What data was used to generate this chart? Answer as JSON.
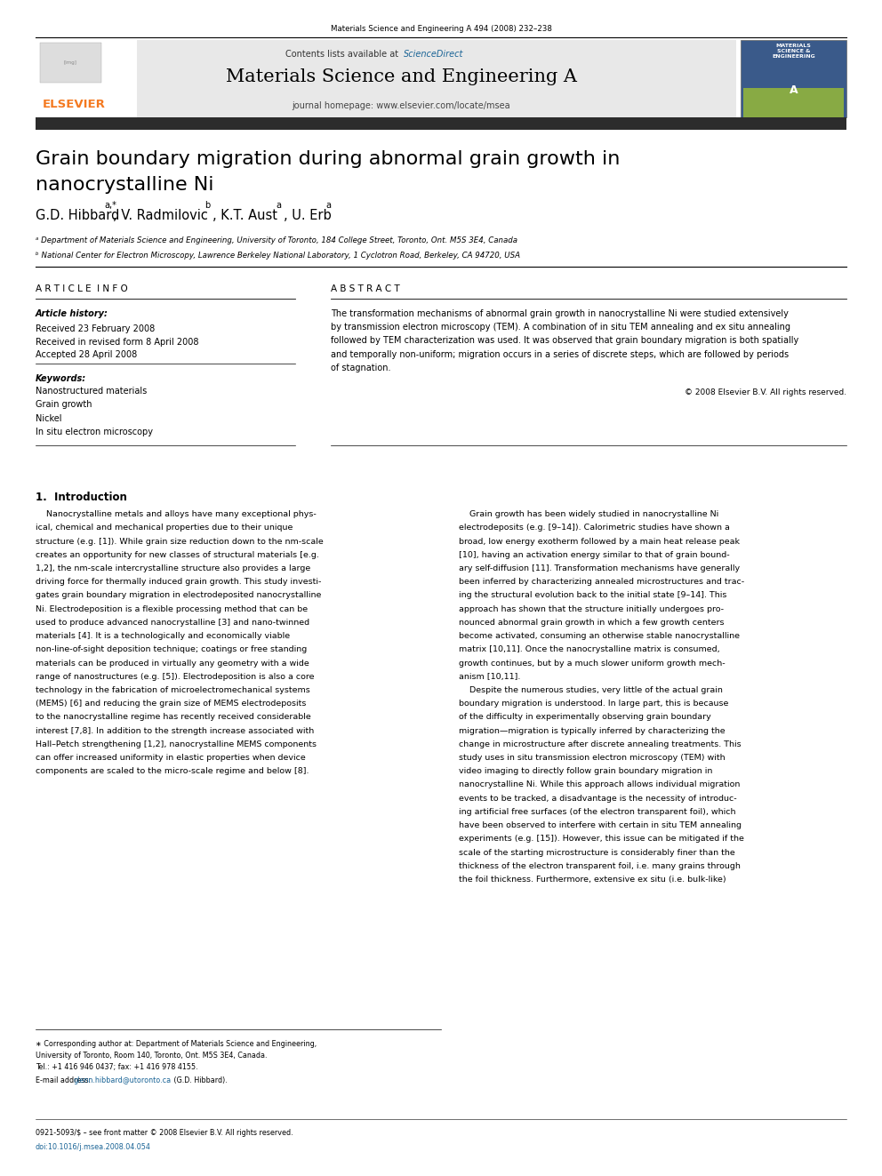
{
  "page_width": 9.92,
  "page_height": 13.23,
  "bg_color": "#ffffff",
  "top_journal_ref": "Materials Science and Engineering A 494 (2008) 232–238",
  "header_bg": "#e8e8e8",
  "header_contents": "Contents lists available at",
  "header_sciencedirect": "ScienceDirect",
  "header_journal_title": "Materials Science and Engineering A",
  "header_url": "journal homepage: www.elsevier.com/locate/msea",
  "dark_bar_color": "#2c2c2c",
  "paper_title_line1": "Grain boundary migration during abnormal grain growth in",
  "paper_title_line2": "nanocrystalline Ni",
  "affil_a": "ᵃ Department of Materials Science and Engineering, University of Toronto, 184 College Street, Toronto, Ont. M5S 3E4, Canada",
  "affil_b": "ᵇ National Center for Electron Microscopy, Lawrence Berkeley National Laboratory, 1 Cyclotron Road, Berkeley, CA 94720, USA",
  "article_info_title": "A R T I C L E  I N F O",
  "abstract_title": "A B S T R A C T",
  "article_history_label": "Article history:",
  "received1": "Received 23 February 2008",
  "received2": "Received in revised form 8 April 2008",
  "accepted": "Accepted 28 April 2008",
  "keywords_label": "Keywords:",
  "keywords": [
    "Nanostructured materials",
    "Grain growth",
    "Nickel",
    "In situ electron microscopy"
  ],
  "abstract_text": "The transformation mechanisms of abnormal grain growth in nanocrystalline Ni were studied extensively\nby transmission electron microscopy (TEM). A combination of in situ TEM annealing and ex situ annealing\nfollowed by TEM characterization was used. It was observed that grain boundary migration is both spatially\nand temporally non-uniform; migration occurs in a series of discrete steps, which are followed by periods\nof stagnation.",
  "copyright": "© 2008 Elsevier B.V. All rights reserved.",
  "section1_title": "1.  Introduction",
  "intro_col1_line1": "    Nanocrystalline metals and alloys have many exceptional phys-",
  "intro_col1_line2": "ical, chemical and mechanical properties due to their unique",
  "intro_col1_line3": "structure (e.g. [1]). While grain size reduction down to the nm-scale",
  "intro_col1_line4": "creates an opportunity for new classes of structural materials [e.g.",
  "intro_col1_line5": "1,2], the nm-scale intercrystalline structure also provides a large",
  "intro_col1_line6": "driving force for thermally induced grain growth. This study investi-",
  "intro_col1_line7": "gates grain boundary migration in electrodeposited nanocrystalline",
  "intro_col1_line8": "Ni. Electrodeposition is a flexible processing method that can be",
  "intro_col1_line9": "used to produce advanced nanocrystalline [3] and nano-twinned",
  "intro_col1_line10": "materials [4]. It is a technologically and economically viable",
  "intro_col1_line11": "non-line-of-sight deposition technique; coatings or free standing",
  "intro_col1_line12": "materials can be produced in virtually any geometry with a wide",
  "intro_col1_line13": "range of nanostructures (e.g. [5]). Electrodeposition is also a core",
  "intro_col1_line14": "technology in the fabrication of microelectromechanical systems",
  "intro_col1_line15": "(MEMS) [6] and reducing the grain size of MEMS electrodeposits",
  "intro_col1_line16": "to the nanocrystalline regime has recently received considerable",
  "intro_col1_line17": "interest [7,8]. In addition to the strength increase associated with",
  "intro_col1_line18": "Hall–Petch strengthening [1,2], nanocrystalline MEMS components",
  "intro_col1_line19": "can offer increased uniformity in elastic properties when device",
  "intro_col1_line20": "components are scaled to the micro-scale regime and below [8].",
  "intro_col2_line1": "    Grain growth has been widely studied in nanocrystalline Ni",
  "intro_col2_line2": "electrodeposits (e.g. [9–14]). Calorimetric studies have shown a",
  "intro_col2_line3": "broad, low energy exotherm followed by a main heat release peak",
  "intro_col2_line4": "[10], having an activation energy similar to that of grain bound-",
  "intro_col2_line5": "ary self-diffusion [11]. Transformation mechanisms have generally",
  "intro_col2_line6": "been inferred by characterizing annealed microstructures and trac-",
  "intro_col2_line7": "ing the structural evolution back to the initial state [9–14]. This",
  "intro_col2_line8": "approach has shown that the structure initially undergoes pro-",
  "intro_col2_line9": "nounced abnormal grain growth in which a few growth centers",
  "intro_col2_line10": "become activated, consuming an otherwise stable nanocrystalline",
  "intro_col2_line11": "matrix [10,11]. Once the nanocrystalline matrix is consumed,",
  "intro_col2_line12": "growth continues, but by a much slower uniform growth mech-",
  "intro_col2_line13": "anism [10,11].",
  "intro_col2_line14": "    Despite the numerous studies, very little of the actual grain",
  "intro_col2_line15": "boundary migration is understood. In large part, this is because",
  "intro_col2_line16": "of the difficulty in experimentally observing grain boundary",
  "intro_col2_line17": "migration—migration is typically inferred by characterizing the",
  "intro_col2_line18": "change in microstructure after discrete annealing treatments. This",
  "intro_col2_line19": "study uses in situ transmission electron microscopy (TEM) with",
  "intro_col2_line20": "video imaging to directly follow grain boundary migration in",
  "intro_col2_line21": "nanocrystalline Ni. While this approach allows individual migration",
  "intro_col2_line22": "events to be tracked, a disadvantage is the necessity of introduc-",
  "intro_col2_line23": "ing artificial free surfaces (of the electron transparent foil), which",
  "intro_col2_line24": "have been observed to interfere with certain in situ TEM annealing",
  "intro_col2_line25": "experiments (e.g. [15]). However, this issue can be mitigated if the",
  "intro_col2_line26": "scale of the starting microstructure is considerably finer than the",
  "intro_col2_line27": "thickness of the electron transparent foil, i.e. many grains through",
  "intro_col2_line28": "the foil thickness. Furthermore, extensive ex situ (i.e. bulk-like)",
  "footnote_line1": "∗ Corresponding author at: Department of Materials Science and Engineering,",
  "footnote_line2": "University of Toronto, Room 140, Toronto, Ont. M5S 3E4, Canada.",
  "footnote_line3": "Tel.: +1 416 946 0437; fax: +1 416 978 4155.",
  "footnote_email_pre": "E-mail address: ",
  "footnote_email_link": "glenn.hibbard@utoronto.ca",
  "footnote_email_post": " (G.D. Hibbard).",
  "bottom_line1": "0921-5093/$ – see front matter © 2008 Elsevier B.V. All rights reserved.",
  "bottom_line2": "doi:10.1016/j.msea.2008.04.054",
  "elsevier_color": "#f47920",
  "sciencedirect_color": "#1a6496"
}
